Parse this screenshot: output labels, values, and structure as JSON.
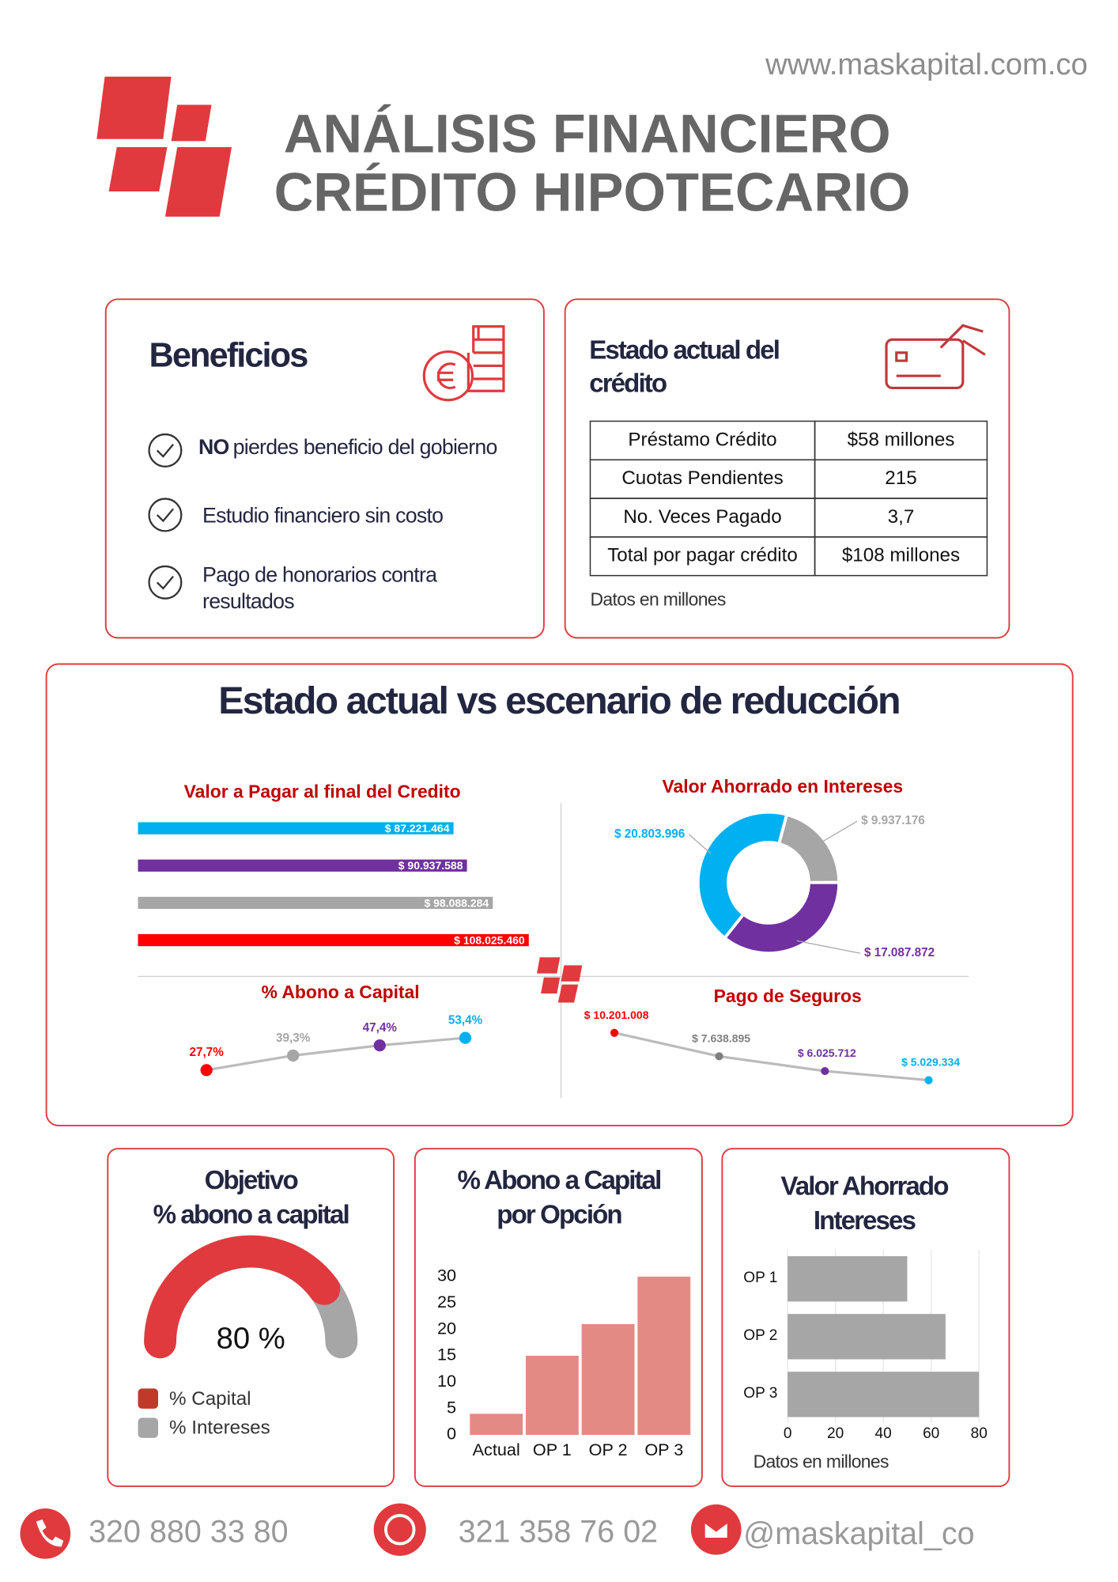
{
  "header": {
    "website": "www.maskapital.com.co",
    "title": [
      "ANÁLISIS FINANCIERO",
      "CRÉDITO HIPOTECARIO"
    ]
  },
  "benefits": {
    "title": "Beneficios",
    "items": [
      {
        "bold": "NO",
        "text": "pierdes beneficio del gobierno"
      },
      {
        "text": "Estudio financiero sin costo"
      },
      {
        "lines": [
          "Pago de honorarios contra",
          "resultados"
        ]
      }
    ]
  },
  "credit_status": {
    "title": [
      "Estado actual del",
      "crédito"
    ],
    "table": {
      "rows": [
        [
          "Préstamo Crédito",
          "$58 millones"
        ],
        [
          "Cuotas Pendientes",
          "215"
        ],
        [
          "No. Veces Pagado",
          "3,7"
        ],
        [
          "Total por pagar crédito",
          "$108 millones"
        ]
      ]
    },
    "note": "Datos en millones"
  },
  "comparison": {
    "title": "Estado actual vs escenario de reducción"
  },
  "chart_data": [
    {
      "type": "hbar",
      "title": "Valor a Pagar al final del Credito",
      "values": [
        87221464,
        90937588,
        98088284,
        108025460
      ],
      "value_labels": [
        "$ 87.221.464",
        "$ 90.937.588",
        "$ 98.088.284",
        "$ 108.025.460"
      ],
      "colors": [
        "#00b0f0",
        "#7030a0",
        "#a6a6a6",
        "#ff0000"
      ]
    },
    {
      "type": "donut",
      "title": "Valor Ahorrado en Intereses",
      "values": [
        9937176,
        17087872,
        20803996
      ],
      "value_labels": [
        "$ 9.937.176",
        "$ 17.087.872",
        "$ 20.803.996"
      ],
      "colors": [
        "#a6a6a6",
        "#7030a0",
        "#00b0f0"
      ]
    },
    {
      "type": "line",
      "title": "% Abono a Capital",
      "values": [
        27.7,
        39.3,
        47.4,
        53.4
      ],
      "value_labels": [
        "27,7%",
        "39,3%",
        "47,4%",
        "53,4%"
      ],
      "colors": [
        "#ff0000",
        "#a6a6a6",
        "#7030a0",
        "#00b0f0"
      ]
    },
    {
      "type": "line",
      "title": "Pago de Seguros",
      "values": [
        10201008,
        7638895,
        6025712,
        5029334
      ],
      "value_labels": [
        "$ 10.201.008",
        "$ 7.638.895",
        "$ 6.025.712",
        "$ 5.029.334"
      ],
      "colors": [
        "#ff0000",
        "#7f7f7f",
        "#7030a0",
        "#00b0f0"
      ]
    },
    {
      "type": "gauge",
      "title": [
        "Objetivo",
        "% abono a capital"
      ],
      "value": 80,
      "value_label": "80 %",
      "legend": [
        "% Capital",
        "% Intereses"
      ],
      "colors": [
        "#e03a3e",
        "#a6a6a6"
      ]
    },
    {
      "type": "bar",
      "title": [
        "% Abono a Capital",
        "por Opción"
      ],
      "categories": [
        "Actual",
        "OP 1",
        "OP 2",
        "OP 3"
      ],
      "values": [
        4,
        15,
        21,
        30
      ],
      "color": "#e48a84",
      "ylim": [
        0,
        30
      ],
      "yticks": [
        0,
        5,
        10,
        15,
        20,
        25,
        30
      ]
    },
    {
      "type": "barh",
      "title": [
        "Valor Ahorrado",
        "Intereses"
      ],
      "categories": [
        "OP 1",
        "OP 2",
        "OP 3"
      ],
      "values": [
        50,
        66,
        80
      ],
      "color": "#a6a6a6",
      "xlim": [
        0,
        80
      ],
      "xticks": [
        0,
        20,
        40,
        60,
        80
      ],
      "grid": true,
      "note": "Datos en millones"
    }
  ],
  "contacts": [
    {
      "text": "320 880 33 80"
    },
    {
      "text": "321 358 76 02"
    },
    {
      "text": "@maskapital_co"
    }
  ]
}
